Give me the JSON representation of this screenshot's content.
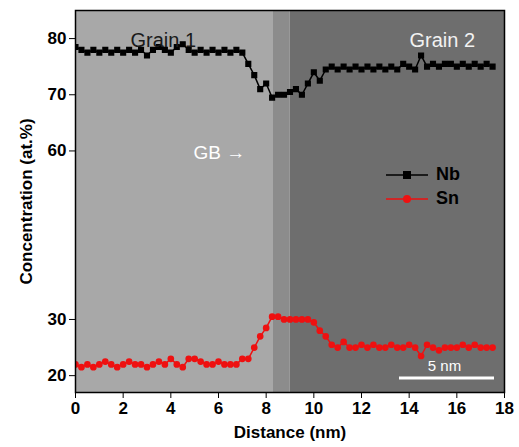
{
  "chart_data": {
    "type": "line",
    "x_label": "Distance (nm)",
    "y_label": "Concentration (at.%)",
    "annotations": [
      "Grain 1",
      "Grain 2",
      "GB →",
      "5 nm"
    ],
    "x": [
      0,
      0.25,
      0.5,
      0.75,
      1,
      1.25,
      1.5,
      1.75,
      2,
      2.25,
      2.5,
      2.75,
      3,
      3.25,
      3.5,
      3.75,
      4,
      4.25,
      4.5,
      4.75,
      5,
      5.25,
      5.5,
      5.75,
      6,
      6.25,
      6.5,
      6.75,
      7,
      7.25,
      7.5,
      7.75,
      8,
      8.25,
      8.5,
      8.75,
      9,
      9.25,
      9.5,
      9.75,
      10,
      10.25,
      10.5,
      10.75,
      11,
      11.25,
      11.5,
      11.75,
      12,
      12.25,
      12.5,
      12.75,
      13,
      13.25,
      13.5,
      13.75,
      14,
      14.25,
      14.5,
      14.75,
      15,
      15.25,
      15.5,
      15.75,
      16,
      16.25,
      16.5,
      16.75,
      17,
      17.25,
      17.5
    ],
    "series": [
      {
        "name": "Nb",
        "color": "#000000",
        "marker": "square",
        "values": [
          78.5,
          78,
          77.5,
          78,
          77.5,
          78,
          77.5,
          78,
          77.5,
          78,
          77.5,
          78,
          77,
          78,
          78.5,
          78,
          77.5,
          78.5,
          79,
          78,
          77.5,
          78,
          77.5,
          78,
          77.5,
          78,
          77.5,
          78,
          77.5,
          75.5,
          73.5,
          71,
          72,
          69.5,
          70,
          70,
          70.5,
          71,
          70,
          72,
          74,
          72.5,
          74.5,
          75,
          74.5,
          75,
          74.5,
          75,
          74.5,
          75,
          74.5,
          75,
          74.5,
          75,
          74.5,
          75.5,
          75,
          74.5,
          77,
          75,
          75.5,
          75,
          75.5,
          75.5,
          75,
          75.5,
          75,
          75.5,
          75,
          75.5,
          75
        ]
      },
      {
        "name": "Sn",
        "color": "#ee1111",
        "marker": "circle",
        "values": [
          22,
          21.5,
          22,
          21.5,
          22,
          22.5,
          22,
          21.5,
          22,
          22.5,
          22,
          22,
          21.5,
          22,
          22.5,
          22,
          23,
          22,
          21.5,
          23,
          23,
          22.5,
          22,
          22,
          22.5,
          22,
          22,
          22,
          23,
          23,
          25,
          27,
          28.5,
          30.5,
          30.5,
          30,
          30,
          30,
          30,
          30,
          29.5,
          28,
          27,
          25.5,
          25,
          26,
          25,
          25,
          25.5,
          25,
          25.5,
          25,
          25,
          25.5,
          25,
          25,
          25.5,
          25,
          23.5,
          25.5,
          25,
          24.5,
          25,
          25,
          25,
          25.5,
          25,
          25.5,
          25,
          25,
          25
        ]
      }
    ],
    "xlim": [
      0,
      18
    ],
    "xticks": [
      0,
      2,
      4,
      6,
      8,
      10,
      12,
      14,
      16,
      18
    ],
    "ylim": [
      17,
      85
    ],
    "yticks": [
      20,
      30,
      60,
      70,
      80
    ],
    "legend": "right"
  }
}
